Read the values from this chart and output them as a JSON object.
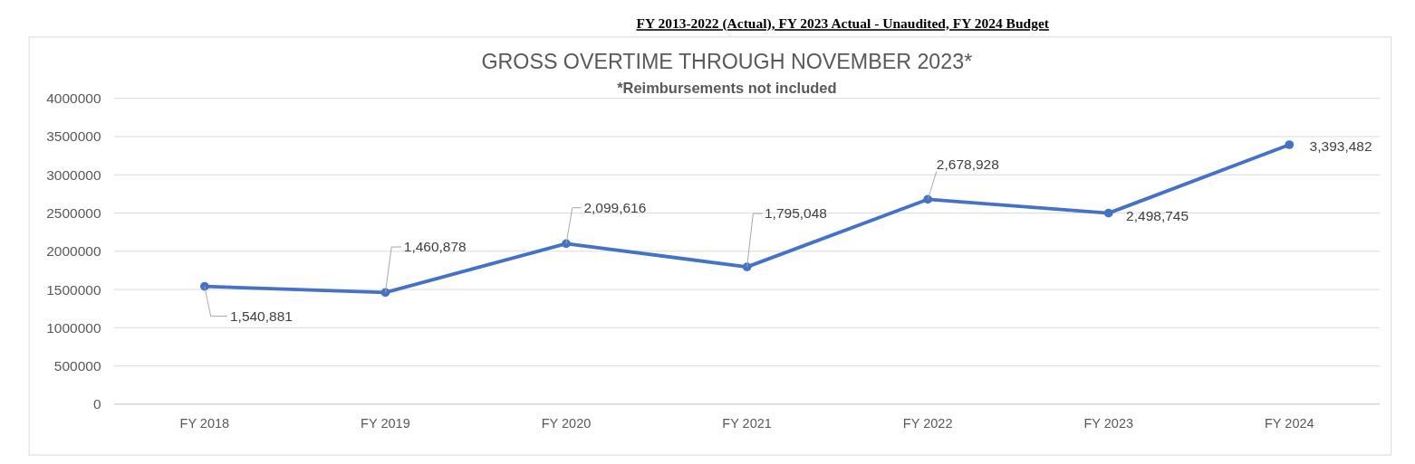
{
  "chart_data": {
    "type": "line",
    "title": "GROSS OVERTIME THROUGH NOVEMBER 2023*",
    "subtitle": "*Reimbursements not included",
    "annotations": [
      "FY 2013-2022 (Actual), FY 2023 Actual - Unaudited, FY 2024 Budget"
    ],
    "categories": [
      "FY 2018",
      "FY 2019",
      "FY 2020",
      "FY 2021",
      "FY 2022",
      "FY 2023",
      "FY 2024"
    ],
    "series": [
      {
        "color": "#4472c4",
        "values": [
          1540881,
          1460878,
          2099616,
          1795048,
          2678928,
          2498745,
          3393482
        ],
        "value_labels": [
          "1,540,881",
          "1,460,878",
          "2,099,616",
          "1,795,048",
          "2,678,928",
          "2,498,745",
          "3,393,482"
        ]
      }
    ],
    "ylim": [
      0,
      4000000
    ],
    "yticks": [
      0,
      500000,
      1000000,
      1500000,
      2000000,
      2500000,
      3000000,
      3500000,
      4000000
    ],
    "grid": "y",
    "marker": "circle",
    "line_style": "solid"
  }
}
